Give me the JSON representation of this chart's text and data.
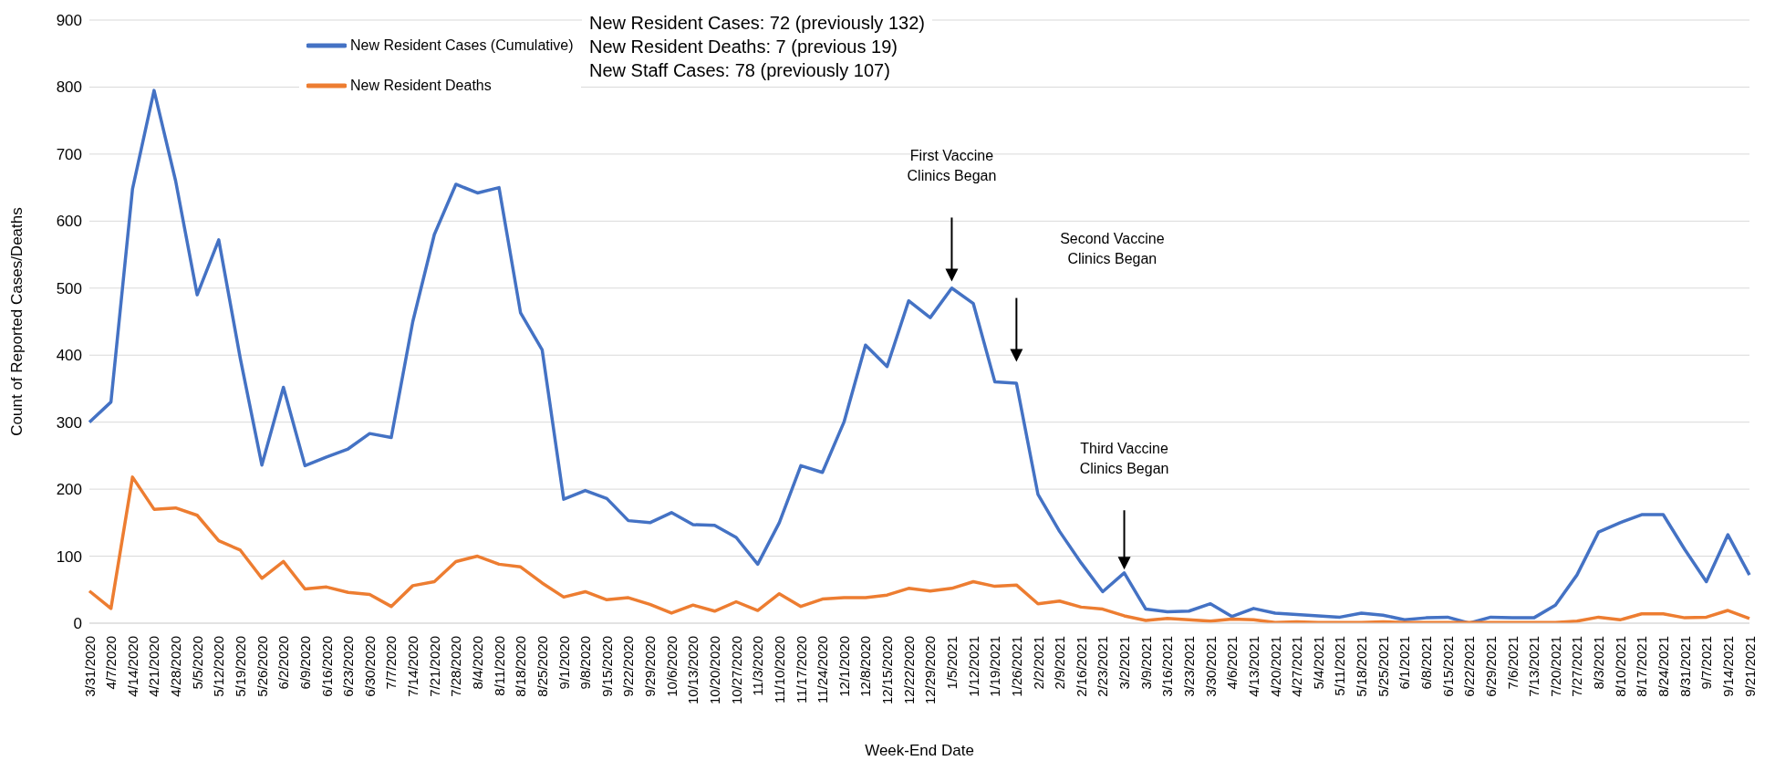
{
  "chart_data": {
    "type": "line",
    "xlabel": "Week-End Date",
    "ylabel": "Count of Reported Cases/Deaths",
    "categories": [
      "3/31/2020",
      "4/7/2020",
      "4/14/2020",
      "4/21/2020",
      "4/28/2020",
      "5/5/2020",
      "5/12/2020",
      "5/19/2020",
      "5/26/2020",
      "6/2/2020",
      "6/9/2020",
      "6/16/2020",
      "6/23/2020",
      "6/30/2020",
      "7/7/2020",
      "7/14/2020",
      "7/21/2020",
      "7/28/2020",
      "8/4/2020",
      "8/11/2020",
      "8/18/2020",
      "8/25/2020",
      "9/1/2020",
      "9/8/2020",
      "9/15/2020",
      "9/22/2020",
      "9/29/2020",
      "10/6/2020",
      "10/13/2020",
      "10/20/2020",
      "10/27/2020",
      "11/3/2020",
      "11/10/2020",
      "11/17/2020",
      "11/24/2020",
      "12/1/2020",
      "12/8/2020",
      "12/15/2020",
      "12/22/2020",
      "12/29/2020",
      "1/5/2021",
      "1/12/2021",
      "1/19/2021",
      "1/26/2021",
      "2/2/2021",
      "2/9/2021",
      "2/16/2021",
      "2/23/2021",
      "3/2/2021",
      "3/9/2021",
      "3/16/2021",
      "3/23/2021",
      "3/30/2021",
      "4/6/2021",
      "4/13/2021",
      "4/20/2021",
      "4/27/2021",
      "5/4/2021",
      "5/11/2021",
      "5/18/2021",
      "5/25/2021",
      "6/1/2021",
      "6/8/2021",
      "6/15/2021",
      "6/22/2021",
      "6/29/2021",
      "7/6/2021",
      "7/13/2021",
      "7/20/2021",
      "7/27/2021",
      "8/3/2021",
      "8/10/2021",
      "8/17/2021",
      "8/24/2021",
      "8/31/2021",
      "9/7/2021",
      "9/14/2021",
      "9/21/2021"
    ],
    "series": [
      {
        "name": "New Resident Cases (Cumulative)",
        "color": "#4472c4",
        "values": [
          300,
          330,
          648,
          795,
          660,
          490,
          572,
          395,
          236,
          352,
          235,
          248,
          260,
          283,
          277,
          450,
          580,
          655,
          642,
          650,
          463,
          408,
          185,
          198,
          186,
          153,
          150,
          165,
          147,
          146,
          128,
          88,
          150,
          235,
          225,
          300,
          415,
          383,
          481,
          456,
          500,
          477,
          360,
          358,
          192,
          137,
          90,
          47,
          75,
          21,
          17,
          18,
          29,
          10,
          22,
          15,
          13,
          11,
          9,
          15,
          12,
          5,
          8,
          9,
          0,
          9,
          8,
          8,
          27,
          72,
          136,
          150,
          162,
          162,
          110,
          62,
          132,
          72
        ]
      },
      {
        "name": "New Resident Deaths",
        "color": "#ed7d31",
        "values": [
          48,
          22,
          218,
          170,
          172,
          161,
          123,
          109,
          67,
          92,
          51,
          54,
          46,
          43,
          25,
          56,
          62,
          92,
          100,
          88,
          84,
          60,
          39,
          47,
          35,
          38,
          28,
          15,
          27,
          18,
          32,
          19,
          44,
          25,
          36,
          38,
          38,
          42,
          52,
          48,
          52,
          62,
          55,
          57,
          29,
          33,
          24,
          21,
          11,
          4,
          7,
          5,
          3,
          6,
          5,
          1,
          2,
          1,
          1,
          1,
          2,
          1,
          1,
          1,
          1,
          1,
          1,
          1,
          1,
          3,
          9,
          5,
          14,
          14,
          8,
          9,
          19,
          7
        ]
      }
    ],
    "ylim": [
      0,
      900
    ],
    "yticks": [
      0,
      100,
      200,
      300,
      400,
      500,
      600,
      700,
      800,
      900
    ],
    "grid": "y",
    "legend": "top left",
    "marker": "none",
    "line_style": "solid",
    "annotations": [
      "New Resident Cases: 72 (previously 132)",
      "New Resident Deaths: 7 (previous 19)",
      "New Staff Cases: 78 (previously 107)",
      "First Vaccine\nClinics Began",
      "Second Vaccine\nClinics Began",
      "Third Vaccine\nClinics Began"
    ]
  }
}
